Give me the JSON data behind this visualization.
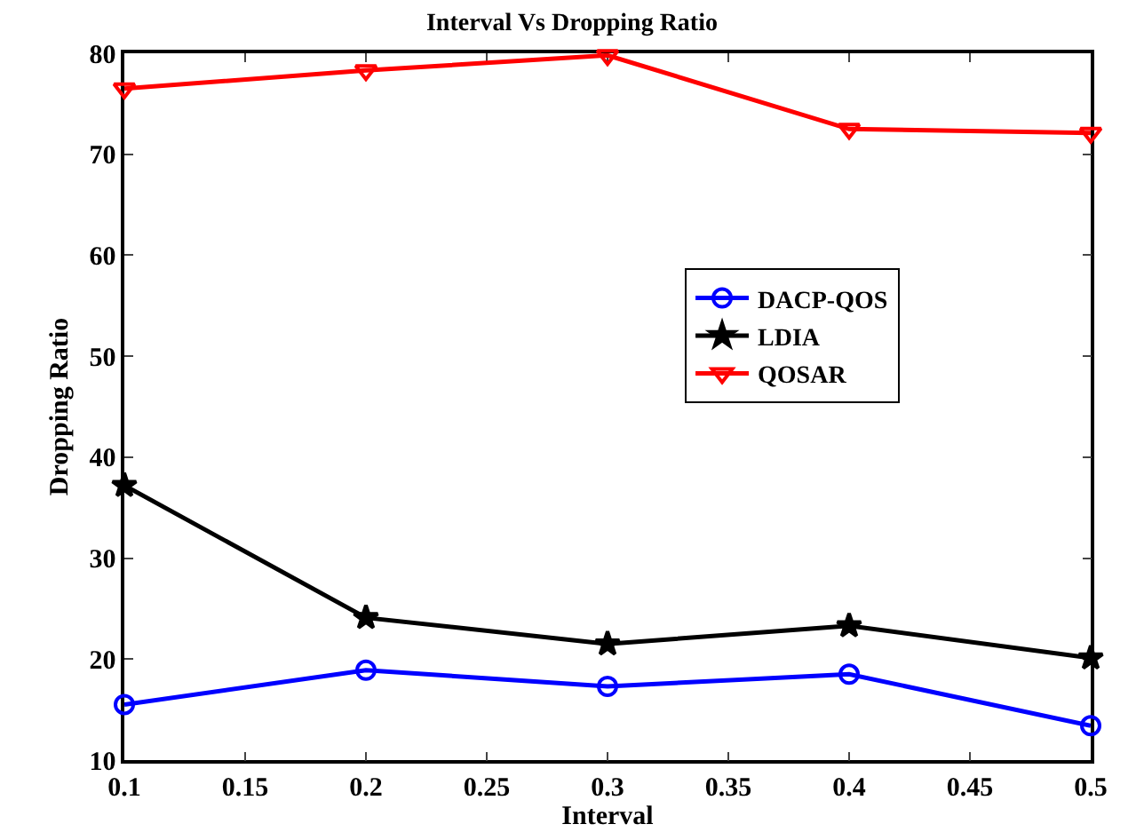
{
  "chart_data": {
    "type": "line",
    "title": "Interval Vs Dropping Ratio",
    "xlabel": "Interval",
    "ylabel": "Dropping Ratio",
    "x": [
      0.1,
      0.2,
      0.3,
      0.4,
      0.5
    ],
    "series": [
      {
        "name": "DACP-QOS",
        "color": "#0000ff",
        "marker": "circle",
        "values": [
          15.5,
          18.9,
          17.3,
          18.5,
          13.4
        ]
      },
      {
        "name": "LDIA",
        "color": "#000000",
        "marker": "star",
        "values": [
          37.2,
          24.1,
          21.5,
          23.3,
          20.1
        ]
      },
      {
        "name": "QOSAR",
        "color": "#ff0000",
        "marker": "triangle",
        "values": [
          76.5,
          78.3,
          79.8,
          72.5,
          72.1
        ]
      }
    ],
    "xlim": [
      0.1,
      0.5
    ],
    "xticks": [
      0.1,
      0.15,
      0.2,
      0.25,
      0.3,
      0.35,
      0.4,
      0.45,
      0.5
    ],
    "ylim": [
      10,
      80
    ],
    "yticks": [
      10,
      20,
      30,
      40,
      50,
      60,
      70,
      80
    ],
    "grid": false,
    "legend": "right",
    "line_style": "solid"
  }
}
